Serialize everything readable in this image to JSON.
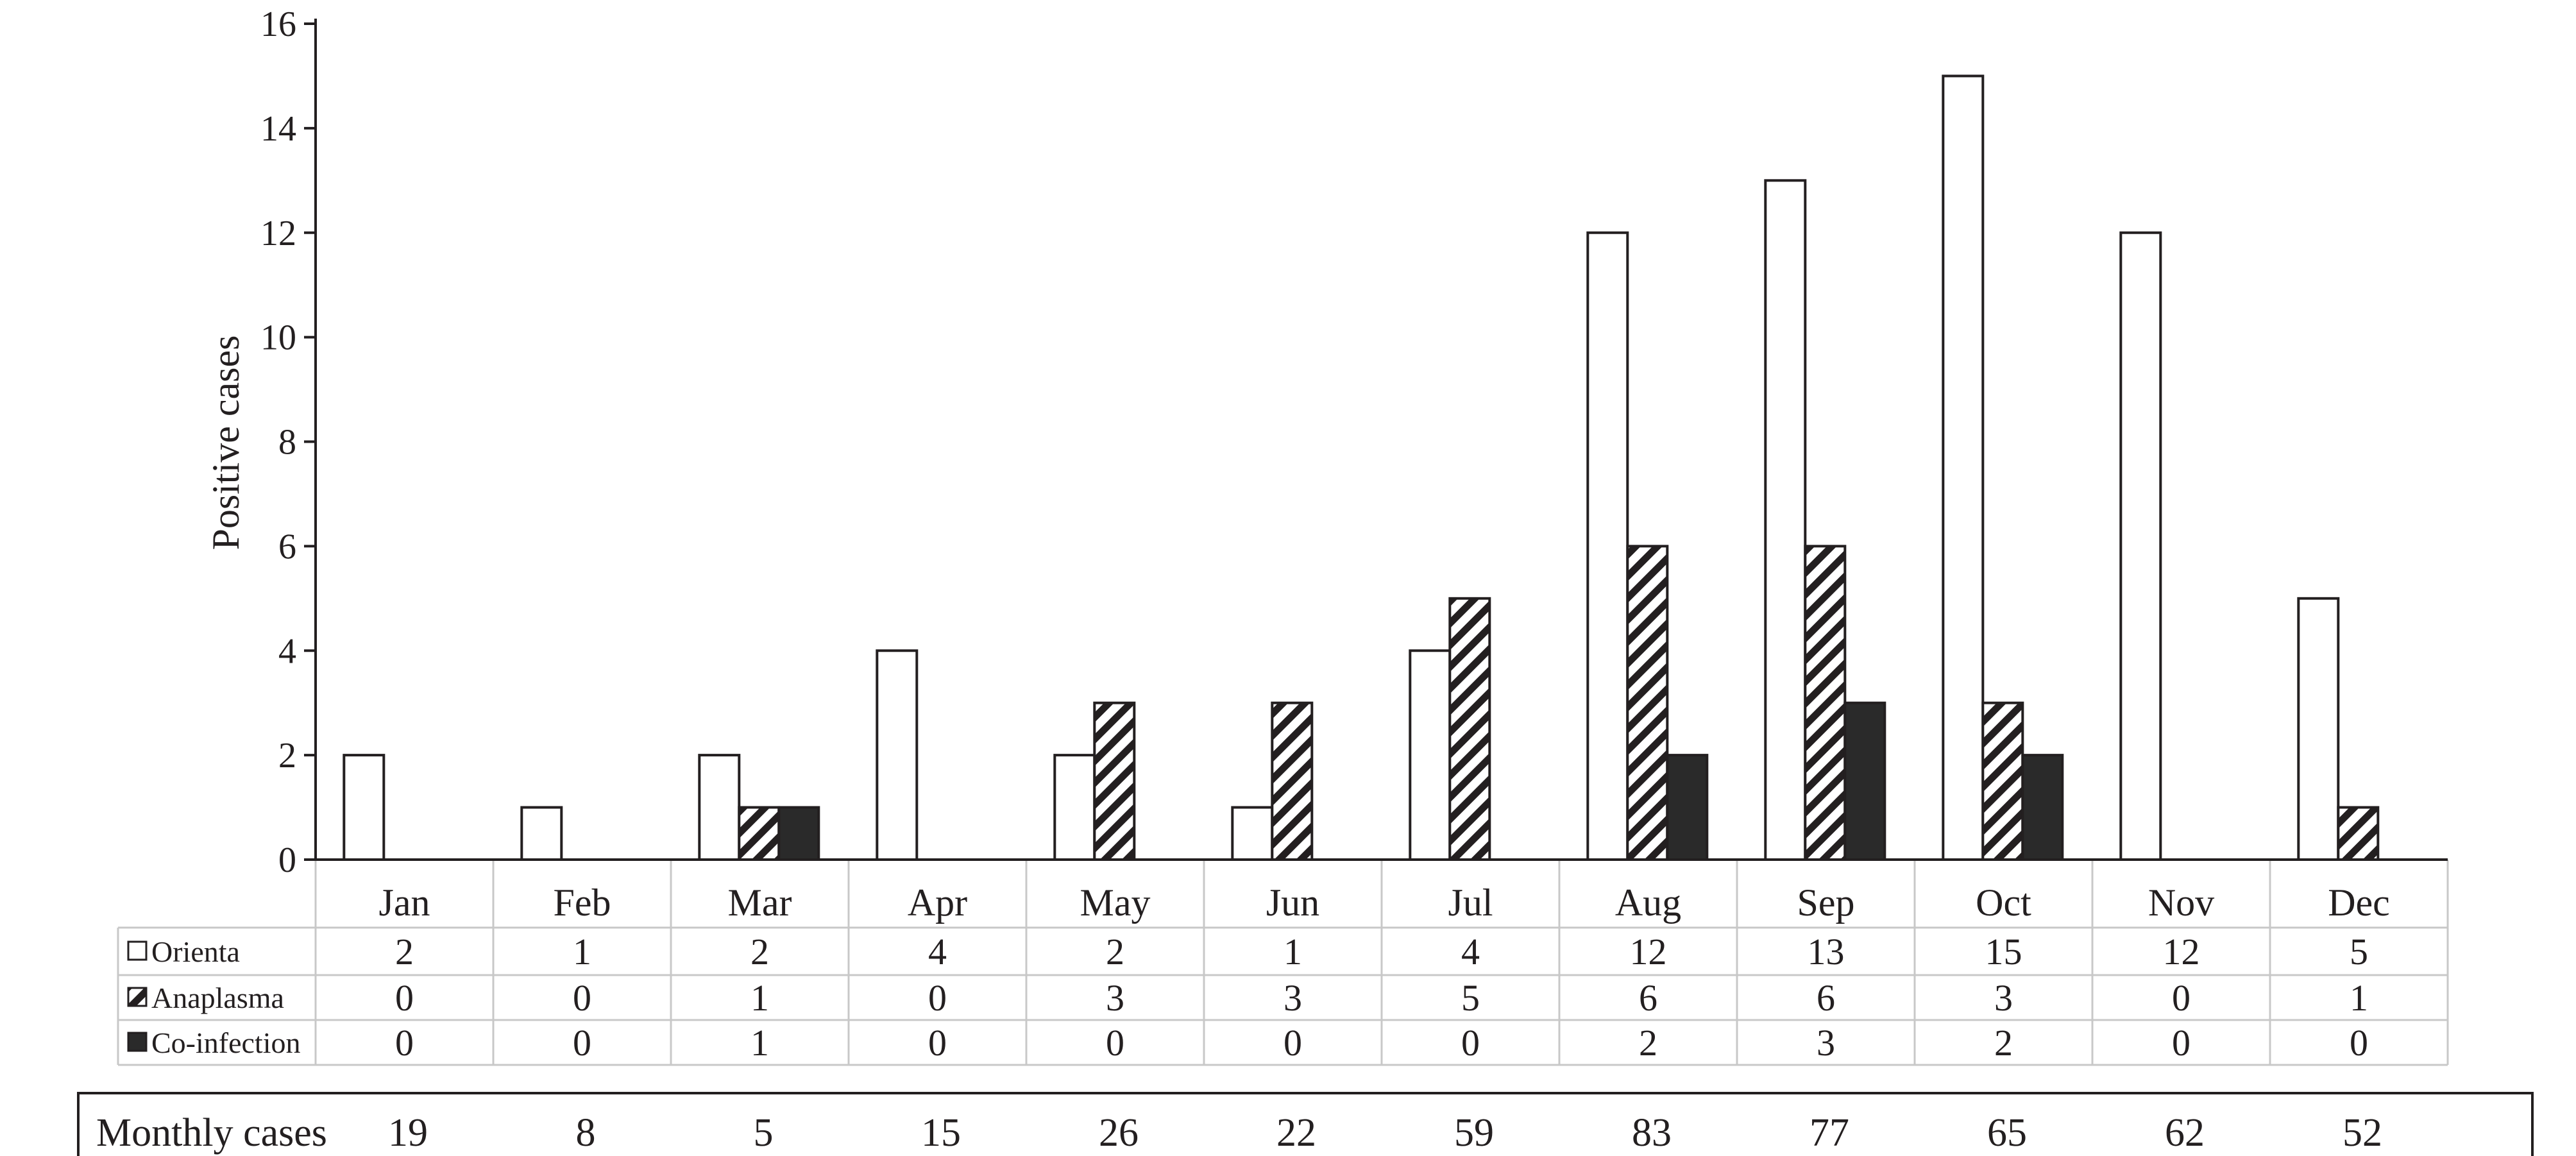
{
  "chart_data": {
    "type": "bar",
    "ylabel": "Positive cases",
    "xlabel": "",
    "ylim": [
      0,
      16
    ],
    "yticks": [
      0,
      2,
      4,
      6,
      8,
      10,
      12,
      14,
      16
    ],
    "grid": false,
    "categories": [
      "Jan",
      "Feb",
      "Mar",
      "Apr",
      "May",
      "Jun",
      "Jul",
      "Aug",
      "Sep",
      "Oct",
      "Nov",
      "Dec"
    ],
    "series": [
      {
        "name": "Orienta",
        "fill": "white",
        "values": [
          2,
          1,
          2,
          4,
          2,
          1,
          4,
          12,
          13,
          15,
          12,
          5
        ]
      },
      {
        "name": "Anaplasma",
        "fill": "hatched",
        "values": [
          0,
          0,
          1,
          0,
          3,
          3,
          5,
          6,
          6,
          3,
          0,
          1
        ]
      },
      {
        "name": "Co-infection",
        "fill": "black",
        "values": [
          0,
          0,
          1,
          0,
          0,
          0,
          0,
          2,
          3,
          2,
          0,
          0
        ]
      }
    ],
    "data_table": true,
    "monthly_cases": {
      "label": "Monthly cases",
      "values": [
        19,
        8,
        5,
        15,
        26,
        22,
        59,
        83,
        77,
        65,
        62,
        52
      ]
    },
    "colors": {
      "ink": "#231f20",
      "table_line": "#c8c8c8",
      "dark_fill": "#2a2a2a"
    }
  }
}
